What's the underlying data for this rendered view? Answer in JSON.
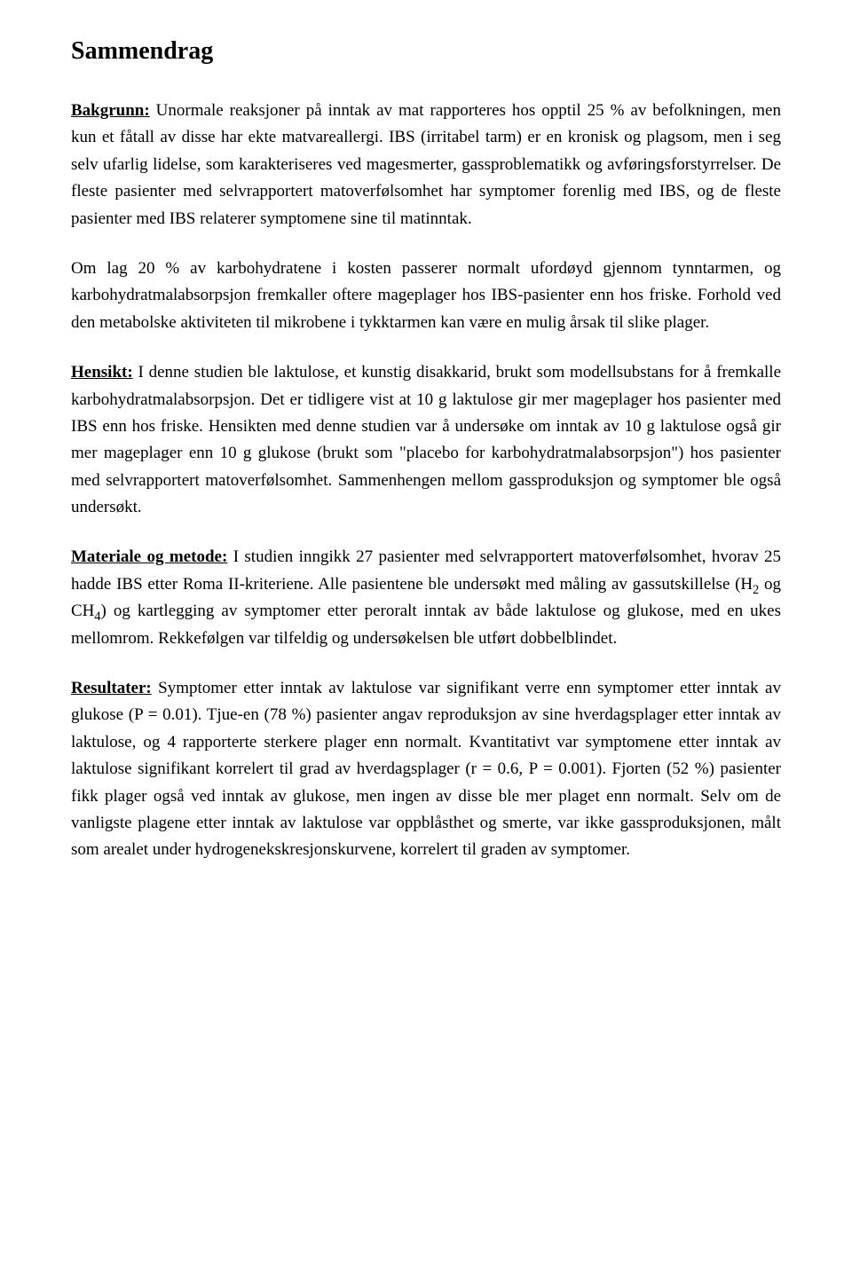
{
  "title": "Sammendrag",
  "sections": {
    "bakgrunn": {
      "label": "Bakgrunn:",
      "p1": " Unormale reaksjoner på inntak av mat rapporteres hos opptil 25 % av befolkningen, men kun et fåtall av disse har ekte matvareallergi. IBS (irritabel tarm) er en kronisk og plagsom, men i seg selv ufarlig lidelse, som karakteriseres ved magesmerter, gassproblematikk og avføringsforstyrrelser. De fleste pasienter med selvrapportert matoverfølsomhet har symptomer forenlig med IBS, og de fleste pasienter med IBS relaterer symptomene sine til matinntak.",
      "p2": "Om lag 20 % av karbohydratene i kosten passerer normalt ufordøyd gjennom tynntarmen, og karbohydratmalabsorpsjon fremkaller oftere mageplager hos IBS-pasienter enn hos friske. Forhold ved den metabolske aktiviteten til mikrobene i tykktarmen kan være en mulig årsak til slike plager."
    },
    "hensikt": {
      "label": "Hensikt:",
      "p1": " I denne studien ble laktulose, et kunstig disakkarid, brukt som modellsubstans for å fremkalle karbohydratmalabsorpsjon. Det er tidligere vist at 10 g laktulose gir mer mageplager hos pasienter med IBS enn hos friske. Hensikten med denne studien var å undersøke om inntak av 10 g laktulose også gir mer mageplager enn 10 g glukose (brukt som \"placebo for karbohydratmalabsorpsjon\") hos pasienter med selvrapportert matoverfølsomhet. Sammenhengen mellom gassproduksjon og symptomer ble også undersøkt."
    },
    "materiale": {
      "label": "Materiale og metode:",
      "p1_a": " I studien inngikk 27 pasienter med selvrapportert matoverfølsomhet, hvorav 25 hadde IBS etter Roma II-kriteriene. Alle pasientene ble undersøkt med måling av gassutskillelse (H",
      "sub1": "2",
      "p1_b": " og CH",
      "sub2": "4",
      "p1_c": ") og kartlegging av symptomer etter peroralt inntak av både laktulose og glukose, med en ukes mellomrom. Rekkefølgen var tilfeldig og undersøkelsen ble utført dobbelblindet."
    },
    "resultater": {
      "label": "Resultater:",
      "p1": " Symptomer etter inntak av laktulose var signifikant verre enn symptomer etter inntak av glukose (P = 0.01). Tjue-en (78 %) pasienter angav reproduksjon av sine hverdagsplager etter inntak av laktulose, og 4 rapporterte sterkere plager enn normalt. Kvantitativt var symptomene etter inntak av laktulose signifikant korrelert til grad av hverdagsplager (r = 0.6, P = 0.001). Fjorten (52 %) pasienter fikk plager også ved inntak av glukose, men ingen av disse ble mer plaget enn normalt. Selv om de vanligste plagene etter inntak av laktulose var oppblåsthet og smerte, var ikke gassproduksjonen, målt som arealet under hydrogenekskresjonskurvene, korrelert til graden av symptomer."
    }
  }
}
